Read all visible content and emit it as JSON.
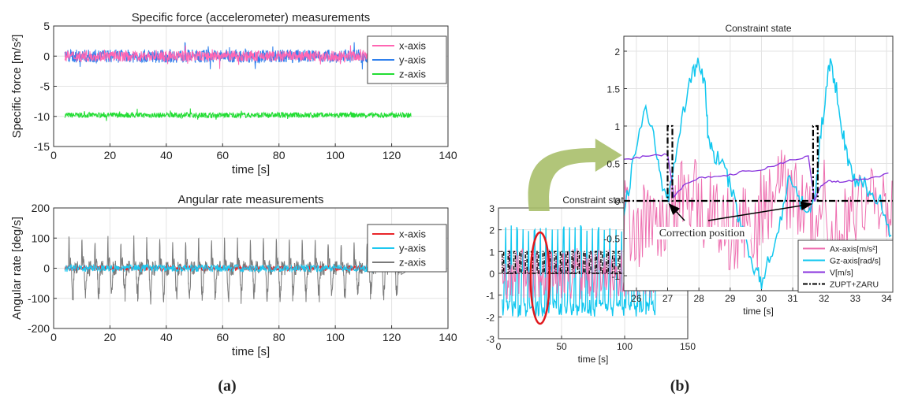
{
  "panel_labels": {
    "a": "(a)",
    "b": "(b)"
  },
  "chart_data": [
    {
      "id": "specific-force",
      "type": "line",
      "title": "Specific force (accelerometer) measurements",
      "xlabel": "time [s]",
      "ylabel": "Specific force [m/s²]",
      "xlim": [
        0,
        140
      ],
      "ylim": [
        -15,
        5
      ],
      "xticks": [
        "0",
        "20",
        "40",
        "60",
        "80",
        "100",
        "120",
        "140"
      ],
      "yticks": [
        "5",
        "0",
        "-5",
        "-10",
        "-15"
      ],
      "grid": true,
      "legend_position": "top-right",
      "x_range": [
        4,
        127
      ],
      "series": [
        {
          "name": "x-axis",
          "color": "#ff66b3",
          "baseline": 0,
          "amplitude": 0.9
        },
        {
          "name": "y-axis",
          "color": "#2f80ed",
          "baseline": 0,
          "amplitude": 1.1
        },
        {
          "name": "z-axis",
          "color": "#22dd33",
          "baseline": -9.8,
          "amplitude": 0.45
        }
      ]
    },
    {
      "id": "angular-rate",
      "type": "line",
      "title": "Angular rate measurements",
      "xlabel": "time [s]",
      "ylabel": "Angular rate  [deg/s]",
      "xlim": [
        0,
        140
      ],
      "ylim": [
        -200,
        200
      ],
      "xticks": [
        "0",
        "20",
        "40",
        "60",
        "80",
        "100",
        "120",
        "140"
      ],
      "yticks": [
        "200",
        "100",
        "0",
        "-100",
        "-200"
      ],
      "grid": true,
      "legend_position": "top-right",
      "x_range": [
        4,
        127
      ],
      "gait_period": 4.6,
      "series": [
        {
          "name": "x-axis",
          "color": "#e8262a",
          "baseline": 0,
          "amplitude": 8
        },
        {
          "name": "y-axis",
          "color": "#1ec8f0",
          "baseline": 0,
          "amplitude": 12
        },
        {
          "name": "z-axis",
          "color": "#7a7a7a",
          "baseline": 0,
          "peak_high": 110,
          "peak_low": -110
        }
      ]
    },
    {
      "id": "constraint-overview",
      "type": "line",
      "title": "Constraint stat",
      "xlabel": "time [s]",
      "xlim": [
        0,
        150
      ],
      "ylim": [
        -3,
        3
      ],
      "xticks": [
        "0",
        "50",
        "100",
        "150"
      ],
      "yticks": [
        "3",
        "2",
        "1",
        "0",
        "-1",
        "-2",
        "-3"
      ],
      "grid": true,
      "x_range": [
        3,
        125
      ],
      "highlight_x": 33,
      "series": [
        {
          "name": "Ax-axis[m/s²]",
          "color": "#ee6fb0"
        },
        {
          "name": "Gz-axis[rad/s]",
          "color": "#11c7ef"
        },
        {
          "name": "ZUPT+ZARU",
          "color": "#000000",
          "values": [
            0,
            1
          ]
        }
      ]
    },
    {
      "id": "constraint-zoom",
      "type": "line",
      "title": "Constraint state",
      "xlabel": "time [s]",
      "xlim": [
        25.6,
        34.2
      ],
      "ylim": [
        -1.2,
        2.2
      ],
      "xticks": [
        "26",
        "27",
        "28",
        "29",
        "30",
        "31",
        "32",
        "33",
        "34"
      ],
      "yticks": [
        "2",
        "1.5",
        "1",
        "0.5",
        "0",
        "-0.5",
        "-1"
      ],
      "grid": true,
      "legend_position": "bottom-right",
      "annotation": "Correction position",
      "zupt_windows": [
        [
          27.0,
          27.15
        ],
        [
          31.65,
          31.8
        ]
      ],
      "series": [
        {
          "name": "Ax-axis[m/s²]",
          "color": "#ee6fb0"
        },
        {
          "name": "Gz-axis[rad/s]",
          "color": "#11c7ef",
          "x": [
            25.6,
            25.9,
            26.3,
            26.6,
            26.8,
            27.0,
            27.2,
            27.5,
            27.8,
            28.0,
            28.2,
            28.3,
            28.5,
            28.8,
            29.0,
            29.3,
            29.6,
            29.8,
            30.0,
            30.3,
            30.6,
            30.9,
            31.2,
            31.5,
            31.7,
            31.9,
            32.1,
            32.2,
            32.4,
            32.6,
            32.8,
            33.0,
            33.3,
            33.6,
            33.9,
            34.2
          ],
          "y": [
            -0.2,
            0.5,
            1.3,
            0.8,
            0.3,
            0.0,
            0.5,
            1.2,
            1.7,
            1.85,
            1.5,
            0.8,
            0.6,
            0.5,
            0.2,
            -0.3,
            -0.7,
            -0.9,
            -1.1,
            -0.7,
            -0.3,
            0.3,
            0.0,
            -0.1,
            0.0,
            0.9,
            1.6,
            1.85,
            1.5,
            0.9,
            0.5,
            0.3,
            0.2,
            0.1,
            -0.1,
            -0.5
          ]
        },
        {
          "name": "V[m/s]",
          "color": "#8833dd",
          "x": [
            25.6,
            26.0,
            26.5,
            27.0,
            27.2,
            27.5,
            28.0,
            28.5,
            29.0,
            29.5,
            30.0,
            30.5,
            31.0,
            31.5,
            31.7,
            31.9,
            32.2,
            32.5,
            33.0,
            33.5,
            34.2
          ],
          "y": [
            0.55,
            0.58,
            0.6,
            0.62,
            0.05,
            0.2,
            0.3,
            0.33,
            0.35,
            0.4,
            0.42,
            0.48,
            0.55,
            0.6,
            0.0,
            0.2,
            0.27,
            0.25,
            0.28,
            0.3,
            0.38
          ]
        },
        {
          "name": "ZUPT+ZARU",
          "color": "#000000",
          "values": [
            0,
            1
          ]
        }
      ]
    }
  ]
}
